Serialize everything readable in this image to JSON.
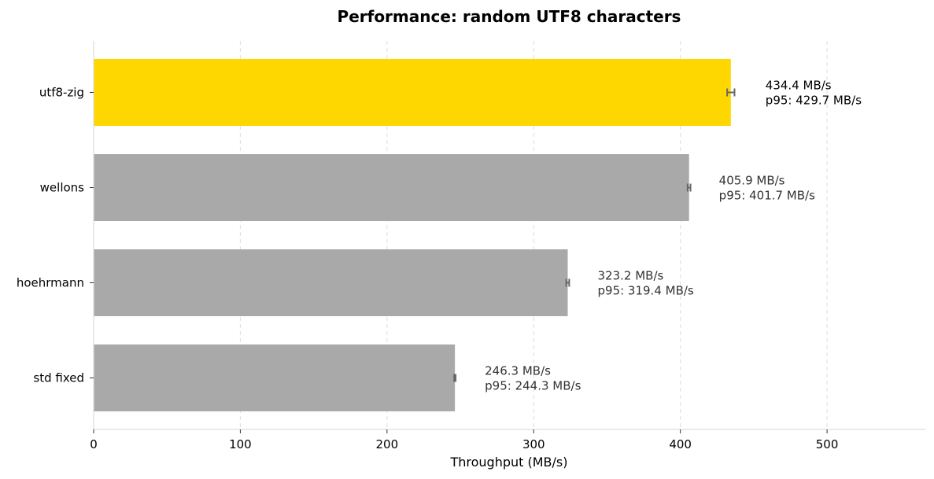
{
  "chart_data": {
    "type": "bar",
    "orientation": "horizontal",
    "title": "Performance: random UTF8 characters",
    "xlabel": "Throughput (MB/s)",
    "ylabel": "",
    "xlim": [
      0,
      567
    ],
    "xticks": [
      0,
      100,
      200,
      300,
      400,
      500
    ],
    "grid": "vertical-dashed",
    "categories": [
      "utf8-zig",
      "wellons",
      "hoehrmann",
      "std fixed"
    ],
    "series": [
      {
        "values": [
          434.4,
          405.9,
          323.2,
          246.3
        ],
        "p95": [
          429.7,
          401.7,
          319.4,
          244.3
        ],
        "error": [
          2.5,
          1.0,
          1.0,
          0.5
        ]
      }
    ],
    "value_labels": [
      "434.4 MB/s",
      "405.9 MB/s",
      "323.2 MB/s",
      "246.3 MB/s"
    ],
    "p95_labels": [
      "p95: 429.7 MB/s",
      "p95: 401.7 MB/s",
      "p95: 319.4 MB/s",
      "p95: 244.3 MB/s"
    ],
    "colors": {
      "highlight": "#FFD700",
      "default": "#A9A9A9",
      "errorbar": "#666666",
      "grid": "#DDDDDD",
      "spine": "#DDDDDD",
      "highlight_text": "#000000",
      "default_text": "#333333"
    },
    "highlight_index": 0
  }
}
